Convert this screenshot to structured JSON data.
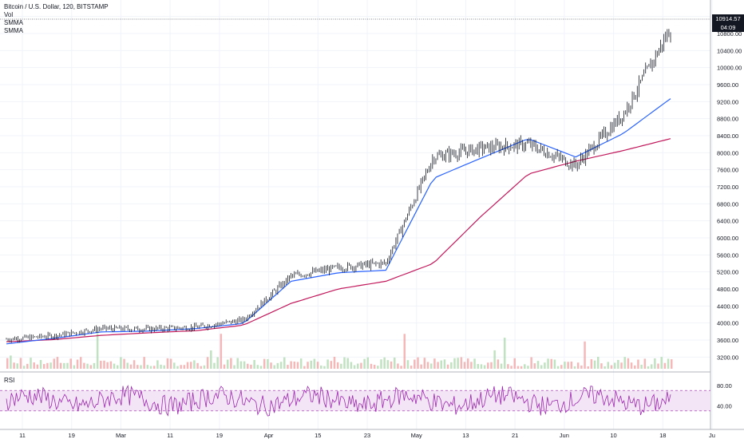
{
  "legend": {
    "symbol": "Bitcoin / U.S. Dollar, 120, BITSTAMP",
    "vol": "Vol",
    "smma1": "SMMA",
    "smma2": "SMMA"
  },
  "rsi": {
    "label": "RSI",
    "upper": "80.00",
    "lower": "40.00"
  },
  "last_price": {
    "value": "10914.57",
    "countdown": "04:09"
  },
  "y_axis_ticks": [
    "11200.00",
    "10800.00",
    "10400.00",
    "10000.00",
    "9600.00",
    "9200.00",
    "8800.00",
    "8400.00",
    "8000.00",
    "7600.00",
    "7200.00",
    "6800.00",
    "6400.00",
    "6000.00",
    "5600.00",
    "5200.00",
    "4800.00",
    "4400.00",
    "4000.00",
    "3600.00",
    "3200.00"
  ],
  "x_axis_ticks": [
    "11",
    "19",
    "Mar",
    "11",
    "19",
    "Apr",
    "15",
    "23",
    "May",
    "13",
    "21",
    "Jun",
    "10",
    "18",
    "Ju"
  ],
  "colors": {
    "smma_fast": "#2962ff",
    "smma_slow": "#c2185b",
    "rsi_line": "#9c27b0",
    "rsi_band": "#f3e5f5",
    "vol_up": "#a5d6a7",
    "vol_down": "#ef9a9a",
    "candle": "#131722"
  },
  "chart_data": {
    "type": "line",
    "x": [
      "Feb 11",
      "Feb 19",
      "Mar 1",
      "Mar 11",
      "Mar 19",
      "Apr 1",
      "Apr 15",
      "Apr 23",
      "May 1",
      "May 13",
      "May 21",
      "Jun 1",
      "Jun 10",
      "Jun 18",
      "Jun 23"
    ],
    "series": [
      {
        "values": [
          3620,
          3700,
          3870,
          3860,
          3900,
          4070,
          5100,
          5300,
          5410,
          7900,
          8100,
          8200,
          7700,
          8900,
          10914
        ]
      },
      {
        "values": [
          3510,
          3640,
          3790,
          3810,
          3870,
          3990,
          4980,
          5180,
          5240,
          7400,
          7870,
          8330,
          7900,
          8450,
          9270
        ]
      },
      {
        "values": [
          3560,
          3610,
          3710,
          3770,
          3820,
          3950,
          4460,
          4800,
          4980,
          5400,
          6500,
          7500,
          7800,
          8050,
          8330
        ]
      }
    ],
    "ylim": [
      3000,
      11400
    ],
    "rsi_ylim": [
      0,
      100
    ]
  }
}
